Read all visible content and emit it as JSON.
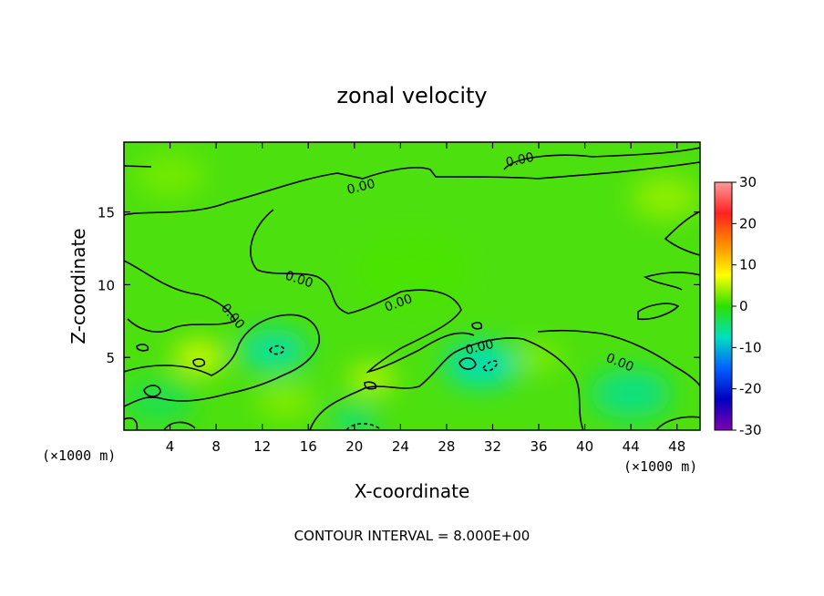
{
  "chart_data": {
    "type": "heatmap",
    "title": "zonal velocity",
    "xlabel": "X-coordinate",
    "ylabel": "Z-coordinate",
    "x_unit_left": "(×1000 m)",
    "x_unit_right": "(×1000 m)",
    "xlim": [
      0,
      50
    ],
    "ylim": [
      0,
      19.8
    ],
    "x_ticks": [
      4,
      8,
      12,
      16,
      20,
      24,
      28,
      32,
      36,
      40,
      44,
      48
    ],
    "y_ticks": [
      5,
      10,
      15
    ],
    "colorbar": {
      "range": [
        -30,
        30
      ],
      "ticks": [
        30,
        20,
        10,
        0,
        -10,
        -20,
        -30
      ],
      "colors": [
        "#ff9a9a",
        "#ff2020",
        "#ff8c00",
        "#ffff00",
        "#2de000",
        "#00e0c0",
        "#0060ff",
        "#0000c0",
        "#8000b0"
      ]
    },
    "contour_interval_text": "CONTOUR INTERVAL = 8.000E+00",
    "contour_labels": [
      "0.00",
      "0.00",
      "0.00",
      "0.00",
      "0.00",
      "0.00",
      "0.00"
    ],
    "field_blobs": [
      {
        "x": 13,
        "z": 5.5,
        "r": 3.0,
        "v": -6
      },
      {
        "x": 31,
        "z": 4.5,
        "r": 3.2,
        "v": -7
      },
      {
        "x": 44,
        "z": 2.5,
        "r": 3.5,
        "v": -5
      },
      {
        "x": 3,
        "z": 2.0,
        "r": 3.0,
        "v": -3
      },
      {
        "x": 20,
        "z": 0.6,
        "r": 2.0,
        "v": -5
      },
      {
        "x": 6.5,
        "z": 5.0,
        "r": 2.2,
        "v": 6
      },
      {
        "x": 21.5,
        "z": 3.5,
        "r": 2.0,
        "v": 5
      },
      {
        "x": 36,
        "z": 5.0,
        "r": 2.0,
        "v": 3
      },
      {
        "x": 4,
        "z": 17.5,
        "r": 3.0,
        "v": 2.5
      },
      {
        "x": 25,
        "z": 11.0,
        "r": 5.0,
        "v": 1.0
      },
      {
        "x": 47,
        "z": 16.0,
        "r": 3.0,
        "v": 3.5
      },
      {
        "x": 14,
        "z": 2.0,
        "r": 2.5,
        "v": 3
      }
    ]
  }
}
